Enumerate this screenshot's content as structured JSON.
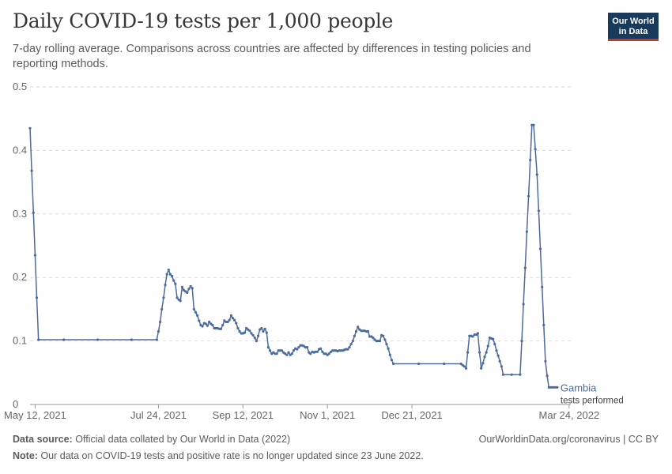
{
  "header": {
    "title": "Daily COVID-19 tests per 1,000 people",
    "subtitle": "7-day rolling average. Comparisons across countries are affected by differences in testing policies and reporting methods.",
    "logo_line1": "Our World",
    "logo_line2": "in Data"
  },
  "footer": {
    "source_label": "Data source:",
    "source_text": "Official data collated by Our World in Data (2022)",
    "url_license": "OurWorldinData.org/coronavirus | CC BY",
    "note_label": "Note:",
    "note_text": "Our data on COVID-19 tests and positive rate is no longer updated since 23 June 2022."
  },
  "colors": {
    "series": "#4c6a9c",
    "grid": "#dddddd",
    "axis_text": "#666666"
  },
  "chart_data": {
    "type": "line",
    "title": "Daily COVID-19 tests per 1,000 people",
    "xlabel": "",
    "ylabel": "",
    "ylim": [
      0,
      0.5
    ],
    "yticks": [
      {
        "value": 0,
        "label": "0"
      },
      {
        "value": 0.1,
        "label": "0.1"
      },
      {
        "value": 0.2,
        "label": "0.2"
      },
      {
        "value": 0.3,
        "label": "0.3"
      },
      {
        "value": 0.4,
        "label": "0.4"
      },
      {
        "value": 0.5,
        "label": "0.5"
      }
    ],
    "x_domain_days": [
      0,
      320
    ],
    "xticks": [
      {
        "day": 3,
        "label": "May 12, 2021"
      },
      {
        "day": 76,
        "label": "Jul 24, 2021"
      },
      {
        "day": 126,
        "label": "Sep 12, 2021"
      },
      {
        "day": 176,
        "label": "Nov 1, 2021"
      },
      {
        "day": 226,
        "label": "Dec 21, 2021"
      },
      {
        "day": 319,
        "label": "Mar 24, 2022"
      }
    ],
    "series": [
      {
        "name": "Gambia",
        "sublabel": "tests performed",
        "points": [
          [
            0,
            0.435
          ],
          [
            1,
            0.368
          ],
          [
            2,
            0.302
          ],
          [
            3,
            0.235
          ],
          [
            4,
            0.168
          ],
          [
            5,
            0.102
          ],
          [
            20,
            0.102
          ],
          [
            40,
            0.102
          ],
          [
            60,
            0.102
          ],
          [
            75,
            0.102
          ],
          [
            76,
            0.115
          ],
          [
            77,
            0.13
          ],
          [
            78,
            0.15
          ],
          [
            79,
            0.168
          ],
          [
            80,
            0.188
          ],
          [
            81,
            0.205
          ],
          [
            82,
            0.212
          ],
          [
            83,
            0.205
          ],
          [
            84,
            0.202
          ],
          [
            85,
            0.195
          ],
          [
            86,
            0.19
          ],
          [
            87,
            0.168
          ],
          [
            88,
            0.165
          ],
          [
            89,
            0.163
          ],
          [
            90,
            0.185
          ],
          [
            91,
            0.18
          ],
          [
            92,
            0.178
          ],
          [
            93,
            0.176
          ],
          [
            94,
            0.182
          ],
          [
            95,
            0.186
          ],
          [
            96,
            0.183
          ],
          [
            97,
            0.15
          ],
          [
            98,
            0.145
          ],
          [
            99,
            0.14
          ],
          [
            100,
            0.132
          ],
          [
            101,
            0.125
          ],
          [
            102,
            0.123
          ],
          [
            103,
            0.128
          ],
          [
            104,
            0.127
          ],
          [
            105,
            0.124
          ],
          [
            106,
            0.13
          ],
          [
            107,
            0.127
          ],
          [
            108,
            0.125
          ],
          [
            109,
            0.12
          ],
          [
            110,
            0.12
          ],
          [
            111,
            0.12
          ],
          [
            112,
            0.119
          ],
          [
            113,
            0.119
          ],
          [
            114,
            0.125
          ],
          [
            115,
            0.132
          ],
          [
            116,
            0.13
          ],
          [
            117,
            0.13
          ],
          [
            118,
            0.133
          ],
          [
            119,
            0.14
          ],
          [
            120,
            0.136
          ],
          [
            121,
            0.133
          ],
          [
            122,
            0.128
          ],
          [
            123,
            0.12
          ],
          [
            124,
            0.115
          ],
          [
            125,
            0.112
          ],
          [
            126,
            0.112
          ],
          [
            127,
            0.113
          ],
          [
            128,
            0.12
          ],
          [
            129,
            0.118
          ],
          [
            130,
            0.116
          ],
          [
            131,
            0.112
          ],
          [
            132,
            0.109
          ],
          [
            133,
            0.105
          ],
          [
            134,
            0.1
          ],
          [
            135,
            0.108
          ],
          [
            136,
            0.118
          ],
          [
            137,
            0.12
          ],
          [
            138,
            0.115
          ],
          [
            139,
            0.119
          ],
          [
            140,
            0.113
          ],
          [
            141,
            0.09
          ],
          [
            142,
            0.085
          ],
          [
            143,
            0.08
          ],
          [
            144,
            0.082
          ],
          [
            145,
            0.08
          ],
          [
            146,
            0.08
          ],
          [
            147,
            0.085
          ],
          [
            148,
            0.085
          ],
          [
            149,
            0.085
          ],
          [
            150,
            0.082
          ],
          [
            151,
            0.08
          ],
          [
            152,
            0.078
          ],
          [
            153,
            0.082
          ],
          [
            154,
            0.078
          ],
          [
            155,
            0.08
          ],
          [
            156,
            0.085
          ],
          [
            157,
            0.088
          ],
          [
            158,
            0.087
          ],
          [
            159,
            0.09
          ],
          [
            160,
            0.093
          ],
          [
            161,
            0.093
          ],
          [
            162,
            0.092
          ],
          [
            163,
            0.09
          ],
          [
            164,
            0.09
          ],
          [
            165,
            0.082
          ],
          [
            166,
            0.08
          ],
          [
            167,
            0.083
          ],
          [
            168,
            0.082
          ],
          [
            169,
            0.083
          ],
          [
            170,
            0.083
          ],
          [
            171,
            0.087
          ],
          [
            172,
            0.088
          ],
          [
            173,
            0.083
          ],
          [
            174,
            0.08
          ],
          [
            175,
            0.08
          ],
          [
            176,
            0.078
          ],
          [
            177,
            0.08
          ],
          [
            178,
            0.083
          ],
          [
            179,
            0.085
          ],
          [
            180,
            0.085
          ],
          [
            181,
            0.085
          ],
          [
            182,
            0.084
          ],
          [
            183,
            0.085
          ],
          [
            184,
            0.085
          ],
          [
            185,
            0.085
          ],
          [
            186,
            0.086
          ],
          [
            187,
            0.087
          ],
          [
            188,
            0.087
          ],
          [
            189,
            0.09
          ],
          [
            190,
            0.095
          ],
          [
            191,
            0.1
          ],
          [
            192,
            0.108
          ],
          [
            193,
            0.115
          ],
          [
            194,
            0.122
          ],
          [
            195,
            0.118
          ],
          [
            196,
            0.116
          ],
          [
            197,
            0.116
          ],
          [
            198,
            0.116
          ],
          [
            199,
            0.115
          ],
          [
            200,
            0.115
          ],
          [
            201,
            0.107
          ],
          [
            202,
            0.107
          ],
          [
            203,
            0.105
          ],
          [
            204,
            0.102
          ],
          [
            205,
            0.1
          ],
          [
            206,
            0.1
          ],
          [
            207,
            0.1
          ],
          [
            208,
            0.109
          ],
          [
            209,
            0.108
          ],
          [
            210,
            0.102
          ],
          [
            211,
            0.095
          ],
          [
            212,
            0.088
          ],
          [
            213,
            0.078
          ],
          [
            214,
            0.07
          ],
          [
            215,
            0.064
          ],
          [
            230,
            0.064
          ],
          [
            245,
            0.064
          ],
          [
            255,
            0.064
          ],
          [
            256,
            0.062
          ],
          [
            257,
            0.06
          ],
          [
            258,
            0.057
          ],
          [
            259,
            0.082
          ],
          [
            260,
            0.108
          ],
          [
            261,
            0.108
          ],
          [
            262,
            0.107
          ],
          [
            263,
            0.11
          ],
          [
            264,
            0.11
          ],
          [
            265,
            0.112
          ],
          [
            266,
            0.082
          ],
          [
            267,
            0.057
          ],
          [
            268,
            0.065
          ],
          [
            269,
            0.075
          ],
          [
            270,
            0.082
          ],
          [
            271,
            0.092
          ],
          [
            272,
            0.105
          ],
          [
            273,
            0.104
          ],
          [
            274,
            0.103
          ],
          [
            275,
            0.095
          ],
          [
            276,
            0.085
          ],
          [
            277,
            0.077
          ],
          [
            278,
            0.068
          ],
          [
            279,
            0.06
          ],
          [
            280,
            0.047
          ],
          [
            285,
            0.047
          ],
          [
            290,
            0.047
          ],
          [
            291,
            0.1
          ],
          [
            292,
            0.158
          ],
          [
            293,
            0.215
          ],
          [
            294,
            0.272
          ],
          [
            295,
            0.328
          ],
          [
            296,
            0.385
          ],
          [
            297,
            0.44
          ],
          [
            298,
            0.44
          ],
          [
            299,
            0.402
          ],
          [
            300,
            0.362
          ],
          [
            301,
            0.305
          ],
          [
            302,
            0.245
          ],
          [
            303,
            0.185
          ],
          [
            304,
            0.125
          ],
          [
            305,
            0.068
          ],
          [
            306,
            0.045
          ],
          [
            307,
            0.027
          ],
          [
            308,
            0.027
          ],
          [
            309,
            0.027
          ],
          [
            310,
            0.027
          ],
          [
            311,
            0.027
          ],
          [
            312,
            0.027
          ]
        ]
      }
    ]
  }
}
